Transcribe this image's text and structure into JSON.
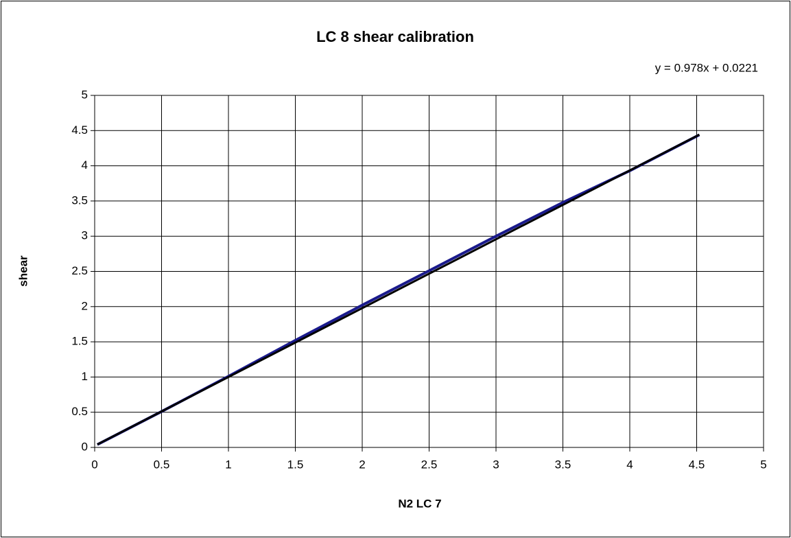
{
  "chart_data": {
    "type": "scatter",
    "title": "LC 8 shear calibration",
    "x_label": "N2 LC 7",
    "y_label": "shear",
    "series": [
      {
        "color": "#1a1a8c",
        "x": [
          0.02,
          0.5,
          1.0,
          1.5,
          2.0,
          2.5,
          3.0,
          3.5,
          4.0,
          4.52
        ],
        "values": [
          0.04,
          0.51,
          1.01,
          1.52,
          2.02,
          2.51,
          3.0,
          3.48,
          3.93,
          4.44
        ]
      }
    ],
    "trendline": {
      "equation": "y = 0.978x + 0.0221",
      "slope": 0.978,
      "intercept": 0.0221,
      "color": "#000000"
    },
    "xlim": [
      0,
      5
    ],
    "xticks": [
      0,
      0.5,
      1,
      1.5,
      2,
      2.5,
      3,
      3.5,
      4,
      4.5,
      5
    ],
    "ylim": [
      0,
      5
    ],
    "yticks": [
      0,
      0.5,
      1,
      1.5,
      2,
      2.5,
      3,
      3.5,
      4,
      4.5,
      5
    ],
    "grid": true
  }
}
